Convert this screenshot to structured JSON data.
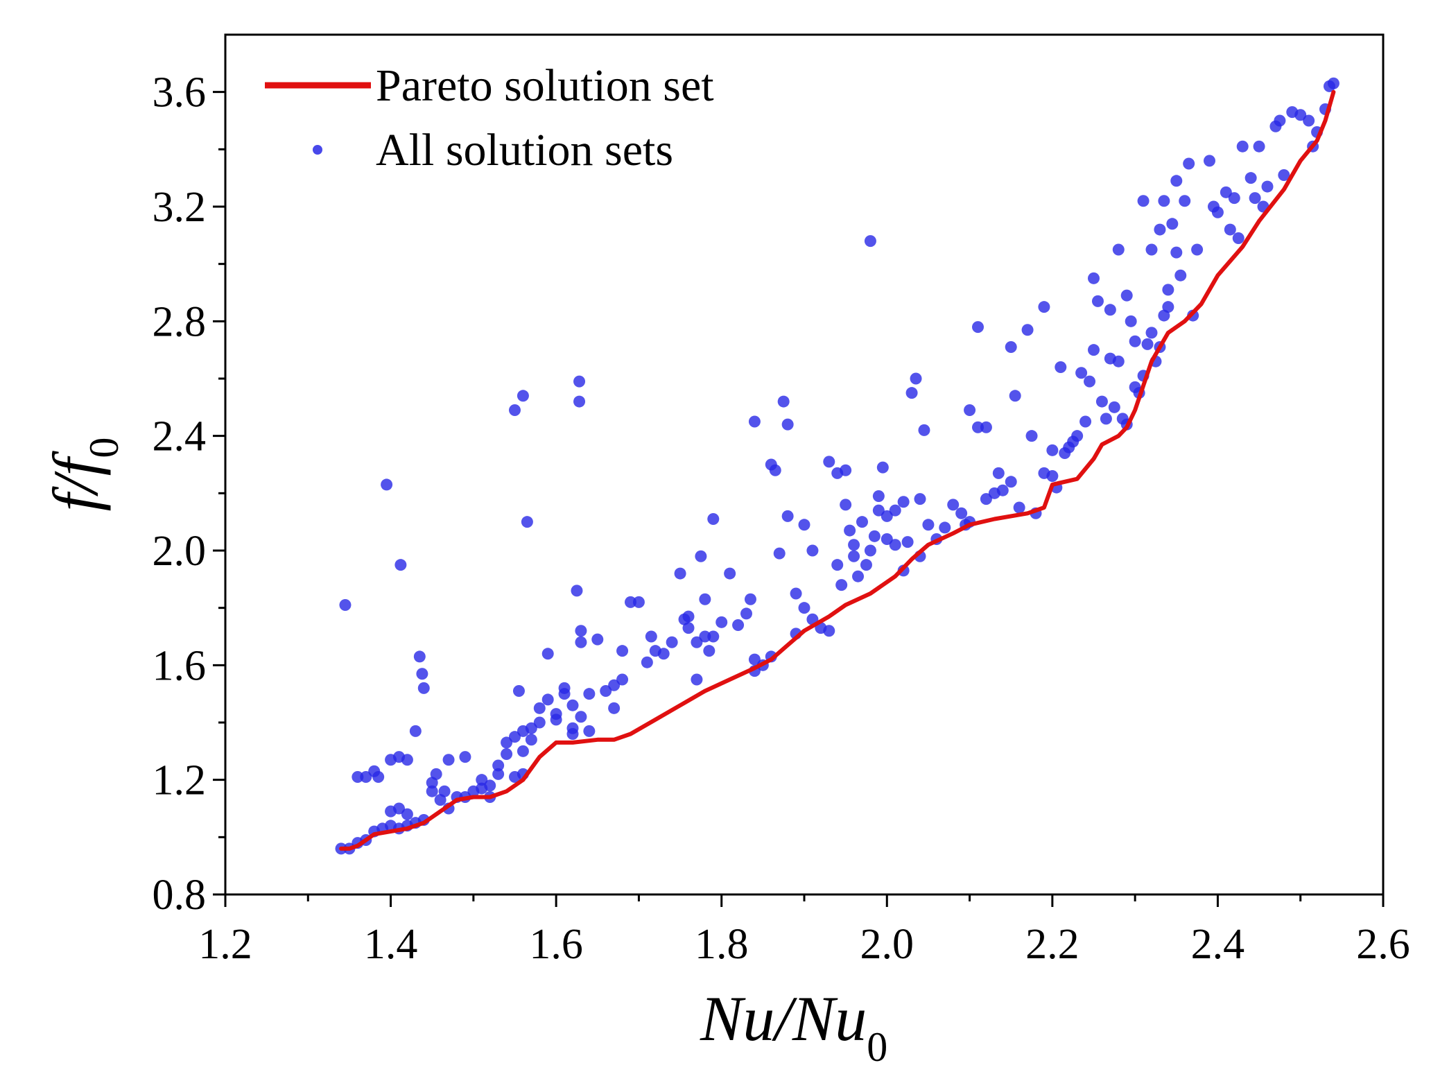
{
  "chart_data": {
    "type": "scatter",
    "title": "",
    "xlabel": {
      "main": "Nu/Nu",
      "sub": "0"
    },
    "ylabel": {
      "main": "f/f",
      "sub": "0"
    },
    "xlim": [
      1.2,
      2.6
    ],
    "ylim": [
      0.8,
      3.8
    ],
    "x_ticks": [
      "1.2",
      "1.4",
      "1.6",
      "1.8",
      "2.0",
      "2.2",
      "2.4",
      "2.6"
    ],
    "y_ticks": [
      "0.8",
      "1.2",
      "1.6",
      "2.0",
      "2.4",
      "2.8",
      "3.2",
      "3.6"
    ],
    "legend_position": "top-left",
    "colors": {
      "pareto": "#e01010",
      "all": "#2828e6",
      "axis": "#000000"
    },
    "series": [
      {
        "name": "Pareto solution set",
        "kind": "line",
        "x": [
          1.34,
          1.35,
          1.36,
          1.37,
          1.38,
          1.4,
          1.42,
          1.44,
          1.45,
          1.47,
          1.48,
          1.5,
          1.52,
          1.54,
          1.56,
          1.58,
          1.6,
          1.62,
          1.65,
          1.67,
          1.69,
          1.72,
          1.75,
          1.78,
          1.81,
          1.84,
          1.86,
          1.88,
          1.9,
          1.93,
          1.95,
          1.98,
          2.01,
          2.03,
          2.05,
          2.08,
          2.1,
          2.13,
          2.17,
          2.19,
          2.2,
          2.23,
          2.25,
          2.26,
          2.28,
          2.29,
          2.3,
          2.32,
          2.34,
          2.36,
          2.38,
          2.4,
          2.43,
          2.45,
          2.48,
          2.5,
          2.52,
          2.53,
          2.54
        ],
        "y": [
          0.96,
          0.96,
          0.97,
          0.99,
          1.01,
          1.02,
          1.03,
          1.05,
          1.07,
          1.11,
          1.13,
          1.14,
          1.14,
          1.16,
          1.2,
          1.28,
          1.33,
          1.33,
          1.34,
          1.34,
          1.36,
          1.41,
          1.46,
          1.51,
          1.55,
          1.59,
          1.62,
          1.67,
          1.72,
          1.77,
          1.81,
          1.85,
          1.91,
          1.97,
          2.02,
          2.06,
          2.09,
          2.11,
          2.13,
          2.15,
          2.23,
          2.25,
          2.32,
          2.37,
          2.4,
          2.43,
          2.49,
          2.66,
          2.76,
          2.8,
          2.86,
          2.96,
          3.06,
          3.15,
          3.26,
          3.36,
          3.43,
          3.5,
          3.6
        ]
      },
      {
        "name": "All solution sets",
        "kind": "scatter",
        "points": [
          [
            1.34,
            0.96
          ],
          [
            1.35,
            0.96
          ],
          [
            1.36,
            0.98
          ],
          [
            1.37,
            0.99
          ],
          [
            1.38,
            1.02
          ],
          [
            1.39,
            1.03
          ],
          [
            1.4,
            1.04
          ],
          [
            1.41,
            1.03
          ],
          [
            1.42,
            1.04
          ],
          [
            1.43,
            1.05
          ],
          [
            1.44,
            1.06
          ],
          [
            1.4,
            1.09
          ],
          [
            1.41,
            1.1
          ],
          [
            1.42,
            1.08
          ],
          [
            1.36,
            1.21
          ],
          [
            1.37,
            1.21
          ],
          [
            1.38,
            1.23
          ],
          [
            1.385,
            1.21
          ],
          [
            1.4,
            1.27
          ],
          [
            1.41,
            1.28
          ],
          [
            1.42,
            1.27
          ],
          [
            1.43,
            1.37
          ],
          [
            1.345,
            1.81
          ],
          [
            1.395,
            2.23
          ],
          [
            1.412,
            1.95
          ],
          [
            1.435,
            1.63
          ],
          [
            1.438,
            1.57
          ],
          [
            1.44,
            1.52
          ],
          [
            1.45,
            1.16
          ],
          [
            1.45,
            1.19
          ],
          [
            1.455,
            1.22
          ],
          [
            1.46,
            1.13
          ],
          [
            1.465,
            1.16
          ],
          [
            1.47,
            1.27
          ],
          [
            1.47,
            1.1
          ],
          [
            1.48,
            1.14
          ],
          [
            1.49,
            1.14
          ],
          [
            1.49,
            1.28
          ],
          [
            1.5,
            1.16
          ],
          [
            1.51,
            1.17
          ],
          [
            1.51,
            1.2
          ],
          [
            1.52,
            1.14
          ],
          [
            1.52,
            1.18
          ],
          [
            1.53,
            1.22
          ],
          [
            1.53,
            1.25
          ],
          [
            1.54,
            1.29
          ],
          [
            1.54,
            1.33
          ],
          [
            1.55,
            1.35
          ],
          [
            1.55,
            1.21
          ],
          [
            1.56,
            1.22
          ],
          [
            1.56,
            1.3
          ],
          [
            1.56,
            1.37
          ],
          [
            1.555,
            1.51
          ],
          [
            1.57,
            1.34
          ],
          [
            1.57,
            1.38
          ],
          [
            1.58,
            1.4
          ],
          [
            1.58,
            1.45
          ],
          [
            1.59,
            1.48
          ],
          [
            1.59,
            1.64
          ],
          [
            1.6,
            1.43
          ],
          [
            1.6,
            1.41
          ],
          [
            1.61,
            1.5
          ],
          [
            1.61,
            1.52
          ],
          [
            1.62,
            1.36
          ],
          [
            1.62,
            1.38
          ],
          [
            1.62,
            1.46
          ],
          [
            1.625,
            1.86
          ],
          [
            1.63,
            1.72
          ],
          [
            1.63,
            1.68
          ],
          [
            1.63,
            1.42
          ],
          [
            1.64,
            1.37
          ],
          [
            1.64,
            1.5
          ],
          [
            1.65,
            1.69
          ],
          [
            1.66,
            1.51
          ],
          [
            1.67,
            1.45
          ],
          [
            1.67,
            1.53
          ],
          [
            1.68,
            1.55
          ],
          [
            1.68,
            1.65
          ],
          [
            1.69,
            1.82
          ],
          [
            1.7,
            1.82
          ],
          [
            1.71,
            1.61
          ],
          [
            1.715,
            1.7
          ],
          [
            1.72,
            1.65
          ],
          [
            1.73,
            1.64
          ],
          [
            1.74,
            1.68
          ],
          [
            1.75,
            1.92
          ],
          [
            1.755,
            1.76
          ],
          [
            1.76,
            1.77
          ],
          [
            1.76,
            1.73
          ],
          [
            1.77,
            1.55
          ],
          [
            1.77,
            1.68
          ],
          [
            1.775,
            1.98
          ],
          [
            1.78,
            1.7
          ],
          [
            1.78,
            1.83
          ],
          [
            1.785,
            1.65
          ],
          [
            1.79,
            2.11
          ],
          [
            1.79,
            1.7
          ],
          [
            1.8,
            1.75
          ],
          [
            1.81,
            1.92
          ],
          [
            1.82,
            1.74
          ],
          [
            1.83,
            1.78
          ],
          [
            1.835,
            1.83
          ],
          [
            1.84,
            1.62
          ],
          [
            1.84,
            1.58
          ],
          [
            1.85,
            1.6
          ],
          [
            1.86,
            1.63
          ],
          [
            1.55,
            2.49
          ],
          [
            1.56,
            2.54
          ],
          [
            1.565,
            2.1
          ],
          [
            1.628,
            2.59
          ],
          [
            1.628,
            2.52
          ],
          [
            1.84,
            2.45
          ],
          [
            1.86,
            2.3
          ],
          [
            1.865,
            2.28
          ],
          [
            1.87,
            1.99
          ],
          [
            1.875,
            2.52
          ],
          [
            1.88,
            2.44
          ],
          [
            1.88,
            2.12
          ],
          [
            1.89,
            1.71
          ],
          [
            1.89,
            1.85
          ],
          [
            1.9,
            1.8
          ],
          [
            1.9,
            2.09
          ],
          [
            1.91,
            2.0
          ],
          [
            1.91,
            1.76
          ],
          [
            1.92,
            1.73
          ],
          [
            1.93,
            1.72
          ],
          [
            1.93,
            2.31
          ],
          [
            1.94,
            2.27
          ],
          [
            1.94,
            1.95
          ],
          [
            1.945,
            1.88
          ],
          [
            1.95,
            2.16
          ],
          [
            1.95,
            2.28
          ],
          [
            1.955,
            2.07
          ],
          [
            1.96,
            2.02
          ],
          [
            1.96,
            1.98
          ],
          [
            1.965,
            1.91
          ],
          [
            1.97,
            2.1
          ],
          [
            1.975,
            1.95
          ],
          [
            1.98,
            2.0
          ],
          [
            1.98,
            3.08
          ],
          [
            1.985,
            2.05
          ],
          [
            1.99,
            2.19
          ],
          [
            1.99,
            2.14
          ],
          [
            1.995,
            2.29
          ],
          [
            2.0,
            2.12
          ],
          [
            2.0,
            2.04
          ],
          [
            2.01,
            2.14
          ],
          [
            2.01,
            2.02
          ],
          [
            2.02,
            2.17
          ],
          [
            2.02,
            1.93
          ],
          [
            2.025,
            2.03
          ],
          [
            2.03,
            2.55
          ],
          [
            2.035,
            2.6
          ],
          [
            2.04,
            2.18
          ],
          [
            2.04,
            1.98
          ],
          [
            2.045,
            2.42
          ],
          [
            2.05,
            2.09
          ],
          [
            2.06,
            2.04
          ],
          [
            2.07,
            2.08
          ],
          [
            2.08,
            2.16
          ],
          [
            2.09,
            2.13
          ],
          [
            2.095,
            2.09
          ],
          [
            2.1,
            2.1
          ],
          [
            2.1,
            2.49
          ],
          [
            2.11,
            2.43
          ],
          [
            2.11,
            2.78
          ],
          [
            2.12,
            2.43
          ],
          [
            2.12,
            2.18
          ],
          [
            2.13,
            2.2
          ],
          [
            2.135,
            2.27
          ],
          [
            2.14,
            2.21
          ],
          [
            2.15,
            2.71
          ],
          [
            2.15,
            2.24
          ],
          [
            2.155,
            2.54
          ],
          [
            2.16,
            2.15
          ],
          [
            2.17,
            2.77
          ],
          [
            2.175,
            2.4
          ],
          [
            2.18,
            2.13
          ],
          [
            2.19,
            2.27
          ],
          [
            2.19,
            2.85
          ],
          [
            2.2,
            2.35
          ],
          [
            2.2,
            2.26
          ],
          [
            2.205,
            2.22
          ],
          [
            2.21,
            2.64
          ],
          [
            2.215,
            2.34
          ],
          [
            2.22,
            2.36
          ],
          [
            2.225,
            2.38
          ],
          [
            2.23,
            2.4
          ],
          [
            2.235,
            2.62
          ],
          [
            2.24,
            2.45
          ],
          [
            2.245,
            2.59
          ],
          [
            2.25,
            2.7
          ],
          [
            2.25,
            2.95
          ],
          [
            2.255,
            2.87
          ],
          [
            2.26,
            2.52
          ],
          [
            2.265,
            2.46
          ],
          [
            2.27,
            2.67
          ],
          [
            2.27,
            2.84
          ],
          [
            2.275,
            2.5
          ],
          [
            2.28,
            2.66
          ],
          [
            2.28,
            3.05
          ],
          [
            2.285,
            2.46
          ],
          [
            2.29,
            2.89
          ],
          [
            2.29,
            2.44
          ],
          [
            2.295,
            2.8
          ],
          [
            2.3,
            2.73
          ],
          [
            2.3,
            2.57
          ],
          [
            2.305,
            2.55
          ],
          [
            2.31,
            3.22
          ],
          [
            2.31,
            2.61
          ],
          [
            2.315,
            2.72
          ],
          [
            2.32,
            3.05
          ],
          [
            2.32,
            2.76
          ],
          [
            2.325,
            2.66
          ],
          [
            2.33,
            3.12
          ],
          [
            2.33,
            2.71
          ],
          [
            2.335,
            2.82
          ],
          [
            2.335,
            3.22
          ],
          [
            2.34,
            2.91
          ],
          [
            2.34,
            2.85
          ],
          [
            2.345,
            3.14
          ],
          [
            2.35,
            3.04
          ],
          [
            2.35,
            3.29
          ],
          [
            2.355,
            2.96
          ],
          [
            2.36,
            3.22
          ],
          [
            2.365,
            3.35
          ],
          [
            2.37,
            2.82
          ],
          [
            2.375,
            3.05
          ],
          [
            2.39,
            3.36
          ],
          [
            2.395,
            3.2
          ],
          [
            2.4,
            3.18
          ],
          [
            2.41,
            3.25
          ],
          [
            2.415,
            3.12
          ],
          [
            2.42,
            3.23
          ],
          [
            2.425,
            3.09
          ],
          [
            2.43,
            3.41
          ],
          [
            2.44,
            3.3
          ],
          [
            2.445,
            3.23
          ],
          [
            2.45,
            3.41
          ],
          [
            2.455,
            3.2
          ],
          [
            2.46,
            3.27
          ],
          [
            2.47,
            3.48
          ],
          [
            2.475,
            3.5
          ],
          [
            2.48,
            3.31
          ],
          [
            2.49,
            3.53
          ],
          [
            2.5,
            3.52
          ],
          [
            2.51,
            3.5
          ],
          [
            2.515,
            3.41
          ],
          [
            2.52,
            3.46
          ],
          [
            2.53,
            3.54
          ],
          [
            2.535,
            3.62
          ],
          [
            2.54,
            3.63
          ]
        ]
      }
    ]
  }
}
